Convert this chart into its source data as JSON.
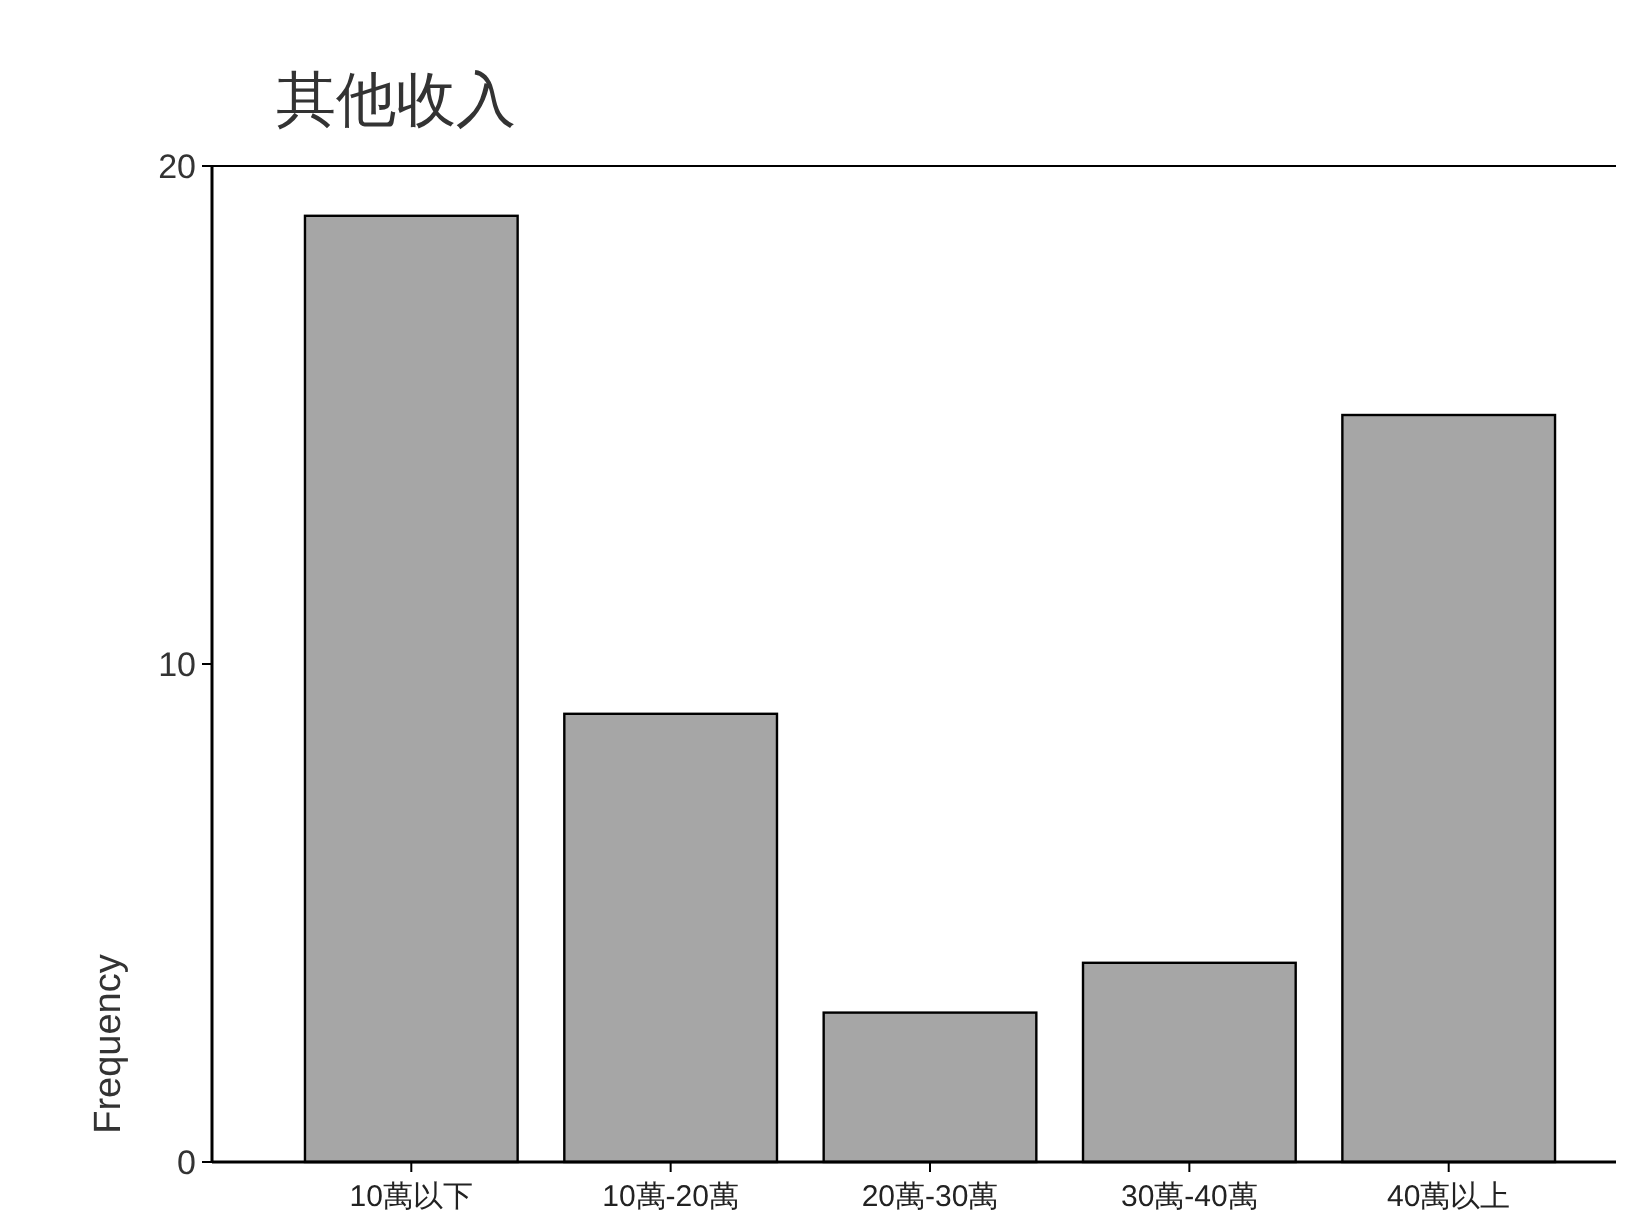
{
  "chart_data": {
    "type": "bar",
    "title": "其他收入",
    "ylabel": "Frequency",
    "categories": [
      "10萬以下",
      "10萬-20萬",
      "20萬-30萬",
      "30萬-40萬",
      "40萬以上"
    ],
    "values": [
      19,
      9,
      3,
      4,
      15
    ],
    "color": "#a6a6a6",
    "ylim": [
      0,
      20
    ],
    "yticks": [
      0,
      10,
      20
    ],
    "grid": false
  }
}
